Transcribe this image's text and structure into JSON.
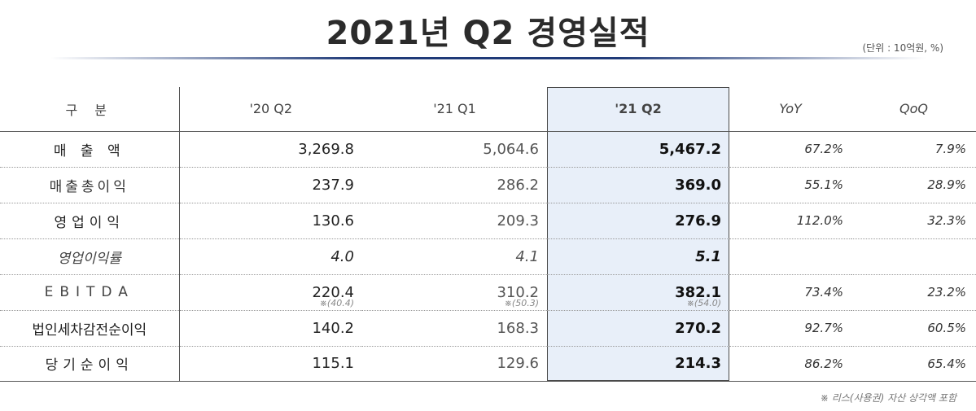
{
  "title": "2021년 Q2 경영실적",
  "unit_note": "(단위 : 10억원, %)",
  "columns": {
    "category": "구  분",
    "q2_2020": "'20 Q2",
    "q1_2021": "'21 Q1",
    "q2_2021": "'21 Q2",
    "yoy": "YoY",
    "qoq": "QoQ"
  },
  "rows": [
    {
      "label": "매   출   액",
      "q2_2020": "3,269.8",
      "q1_2021": "5,064.6",
      "q2_2021": "5,467.2",
      "yoy": "67.2%",
      "qoq": "7.9%"
    },
    {
      "label": "매출총이익",
      "q2_2020": "237.9",
      "q1_2021": "286.2",
      "q2_2021": "369.0",
      "yoy": "55.1%",
      "qoq": "28.9%"
    },
    {
      "label": "영업이익",
      "q2_2020": "130.6",
      "q1_2021": "209.3",
      "q2_2021": "276.9",
      "yoy": "112.0%",
      "qoq": "32.3%"
    },
    {
      "label": "영업이익률",
      "q2_2020": "4.0",
      "q1_2021": "4.1",
      "q2_2021": "5.1",
      "yoy": "",
      "qoq": ""
    },
    {
      "label": "EBITDA",
      "q2_2020": "220.4",
      "q1_2021": "310.2",
      "q2_2021": "382.1",
      "yoy": "73.4%",
      "qoq": "23.2%",
      "notes": {
        "q2_2020": "※(40.4)",
        "q1_2021": "※(50.3)",
        "q2_2021": "※(54.0)"
      }
    },
    {
      "label": "법인세차감전순이익",
      "q2_2020": "140.2",
      "q1_2021": "168.3",
      "q2_2021": "270.2",
      "yoy": "92.7%",
      "qoq": "60.5%"
    },
    {
      "label": "당기순이익",
      "q2_2020": "115.1",
      "q1_2021": "129.6",
      "q2_2021": "214.3",
      "yoy": "86.2%",
      "qoq": "65.4%"
    }
  ],
  "footnote": "※ 리스(사용권) 자산 상각액 포함"
}
